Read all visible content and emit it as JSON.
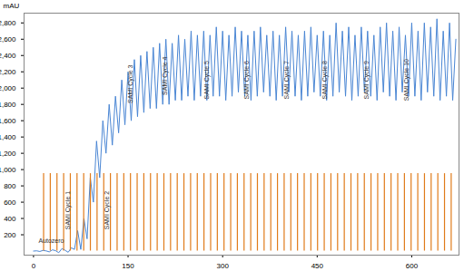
{
  "chart_data": {
    "type": "line",
    "y_label": "mAU",
    "xlim": [
      -15,
      675
    ],
    "xticks": [
      0,
      150,
      300,
      450,
      600
    ],
    "ylim": [
      -50,
      2920
    ],
    "yticks": [
      200,
      400,
      600,
      800,
      1000,
      1200,
      1400,
      1600,
      1800,
      2000,
      2200,
      2400,
      2600,
      2800
    ],
    "series": [
      {
        "type": "line",
        "color": "#4a86d4",
        "x": [
          0,
          5,
          10,
          15,
          20,
          25,
          30,
          35,
          40,
          45,
          50,
          55,
          60,
          65,
          70,
          75,
          80,
          85,
          90,
          95,
          100,
          105,
          110,
          115,
          120,
          125,
          130,
          135,
          140,
          145,
          150,
          155,
          160,
          165,
          170,
          175,
          180,
          185,
          190,
          195,
          200,
          205,
          210,
          215,
          220,
          225,
          230,
          235,
          240,
          245,
          250,
          255,
          260,
          265,
          270,
          275,
          280,
          285,
          290,
          295,
          300,
          305,
          310,
          315,
          320,
          325,
          330,
          335,
          340,
          345,
          350,
          355,
          360,
          365,
          370,
          375,
          380,
          385,
          390,
          395,
          400,
          405,
          410,
          415,
          420,
          425,
          430,
          435,
          440,
          445,
          450,
          455,
          460,
          465,
          470,
          475,
          480,
          485,
          490,
          495,
          500,
          505,
          510,
          515,
          520,
          525,
          530,
          535,
          540,
          545,
          550,
          555,
          560,
          565,
          570,
          575,
          580,
          585,
          590,
          595,
          600,
          605,
          610,
          615,
          620,
          625,
          630,
          635,
          640,
          645,
          650,
          655,
          660,
          665,
          670
        ],
        "values": [
          0,
          3,
          -5,
          8,
          2,
          -10,
          15,
          5,
          -20,
          30,
          10,
          -15,
          40,
          20,
          250,
          20,
          400,
          150,
          900,
          600,
          1350,
          900,
          1600,
          1200,
          1800,
          1300,
          1900,
          1450,
          2100,
          1550,
          2200,
          1600,
          2350,
          1650,
          2400,
          1700,
          2450,
          1750,
          2500,
          1750,
          2550,
          1800,
          2600,
          1800,
          2550,
          1850,
          2650,
          1850,
          2600,
          1900,
          2700,
          1850,
          2650,
          1900,
          2700,
          1850,
          2650,
          1900,
          2750,
          1900,
          2700,
          1850,
          2650,
          1900,
          2750,
          1950,
          2700,
          1900,
          2650,
          1850,
          2700,
          1900,
          2750,
          1950,
          2650,
          1900,
          2700,
          1850,
          2650,
          1900,
          2750,
          1950,
          2700,
          1900,
          2650,
          1850,
          2700,
          1900,
          2750,
          1950,
          2650,
          1900,
          2700,
          1850,
          2650,
          1900,
          2800,
          1950,
          2700,
          1900,
          2750,
          1850,
          2650,
          1900,
          2750,
          1950,
          2700,
          1900,
          2650,
          1850,
          2750,
          1950,
          2800,
          1900,
          2700,
          1850,
          2750,
          1950,
          2650,
          1900,
          2800,
          1900,
          2700,
          1850,
          2800,
          1950,
          2750,
          1900,
          2850,
          1850,
          2700,
          1900,
          2800,
          1850,
          2600
        ]
      },
      {
        "type": "bar",
        "color": "#e07b1a",
        "x": [
          16,
          26.6,
          37.2,
          47.8,
          58.4,
          69,
          79.6,
          90.2,
          100.8,
          111.4,
          122,
          132.6,
          143.2,
          153.8,
          164.4,
          175,
          185.6,
          196.2,
          206.8,
          217.4,
          228,
          238.6,
          249.2,
          259.8,
          270.4,
          281,
          291.6,
          302.2,
          312.8,
          323.4,
          334,
          344.6,
          355.2,
          365.8,
          376.4,
          387,
          397.6,
          408.2,
          418.8,
          429.4,
          440,
          450.6,
          461.2,
          471.8,
          482.4,
          493,
          503.6,
          514.2,
          524.8,
          535.4,
          546,
          556.6,
          567.2,
          577.8,
          588.4,
          599,
          609.6,
          620.2,
          630.8,
          641.4,
          652,
          662.6
        ],
        "values": [
          950,
          950,
          950,
          950,
          950,
          950,
          950,
          950,
          950,
          950,
          950,
          950,
          950,
          950,
          950,
          950,
          950,
          950,
          950,
          950,
          950,
          950,
          950,
          950,
          950,
          950,
          950,
          950,
          950,
          950,
          950,
          950,
          950,
          950,
          950,
          950,
          950,
          950,
          950,
          950,
          950,
          950,
          950,
          950,
          950,
          950,
          950,
          950,
          950,
          950,
          950,
          950,
          950,
          950,
          950,
          950,
          950,
          950,
          950,
          950,
          950,
          950
        ]
      }
    ],
    "annotations": [
      {
        "text": "Autozero",
        "x": 8,
        "y": 120
      },
      {
        "text": "SAMI Cycle 1",
        "x": 54,
        "y": 500
      },
      {
        "text": "SAMI Cycle 2",
        "x": 117,
        "y": 500
      },
      {
        "text": "SAMI Cycle 3",
        "x": 154,
        "y": 2050
      },
      {
        "text": "SAMI Cycle 4",
        "x": 208,
        "y": 2150
      },
      {
        "text": "SAMI Cycle 5",
        "x": 275,
        "y": 2100
      },
      {
        "text": "SAMI Cycle 6",
        "x": 338,
        "y": 2100
      },
      {
        "text": "SAMI Cycle 7",
        "x": 402,
        "y": 2100
      },
      {
        "text": "SAMI Cycle 8",
        "x": 462,
        "y": 2100
      },
      {
        "text": "SAMI Cycle 9",
        "x": 529,
        "y": 2100
      },
      {
        "text": "SAMI Cycle 10",
        "x": 592,
        "y": 2100
      }
    ]
  }
}
